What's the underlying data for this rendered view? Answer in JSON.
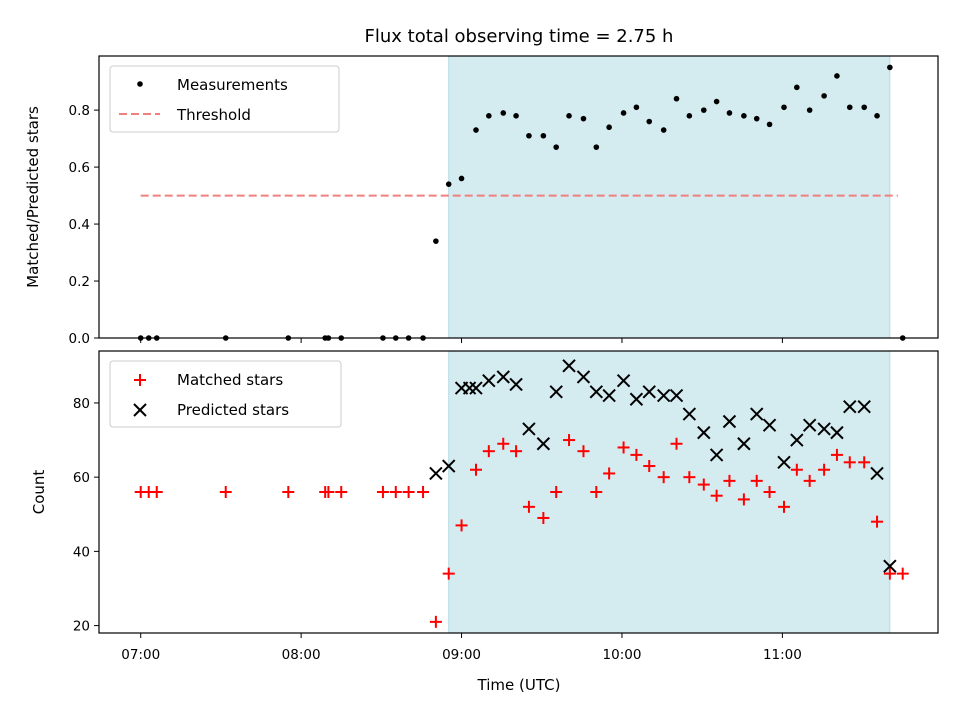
{
  "chart_data": {
    "type": "scatter",
    "title": "Flux total observing time = 2.75 h",
    "xlabel": "Time (UTC)",
    "xticks": [
      "07:00",
      "08:00",
      "09:00",
      "10:00",
      "11:00"
    ],
    "xlim_hours": [
      6.74,
      11.97
    ],
    "observing_window_hours": [
      8.92,
      11.67
    ],
    "observing_window_color": "#d4ebf0",
    "panels": [
      {
        "ylabel": "Matched/Predicted stars",
        "ylim": [
          0,
          0.99
        ],
        "yticks": [
          "0.0",
          "0.2",
          "0.4",
          "0.6",
          "0.8"
        ],
        "legend_position": "upper-left",
        "threshold": {
          "name": "Threshold",
          "value": 0.5,
          "x_range_hours": [
            7.0,
            11.72
          ],
          "color": "#f08080"
        },
        "series": [
          {
            "name": "Measurements",
            "marker": "dot",
            "color": "#000000",
            "x": [
              7.0,
              7.05,
              7.1,
              7.53,
              7.92,
              8.15,
              8.17,
              8.25,
              8.51,
              8.59,
              8.67,
              8.76,
              8.84,
              8.92,
              9.0,
              9.09,
              9.17,
              9.26,
              9.34,
              9.42,
              9.51,
              9.59,
              9.67,
              9.76,
              9.84,
              9.92,
              10.01,
              10.09,
              10.17,
              10.26,
              10.34,
              10.42,
              10.51,
              10.59,
              10.67,
              10.76,
              10.84,
              10.92,
              11.01,
              11.09,
              11.17,
              11.26,
              11.34,
              11.42,
              11.51,
              11.59,
              11.67,
              11.75
            ],
            "y": [
              0.0,
              0.0,
              0.0,
              0.0,
              0.0,
              0.0,
              0.0,
              0.0,
              0.0,
              0.0,
              0.0,
              0.0,
              0.34,
              0.54,
              0.56,
              0.73,
              0.78,
              0.79,
              0.78,
              0.71,
              0.71,
              0.67,
              0.78,
              0.77,
              0.67,
              0.74,
              0.79,
              0.81,
              0.76,
              0.73,
              0.84,
              0.78,
              0.8,
              0.83,
              0.79,
              0.78,
              0.77,
              0.75,
              0.81,
              0.88,
              0.8,
              0.85,
              0.92,
              0.81,
              0.81,
              0.78,
              0.95,
              0.0
            ]
          }
        ]
      },
      {
        "ylabel": "Count",
        "ylim": [
          18,
          94
        ],
        "yticks": [
          "20",
          "40",
          "60",
          "80"
        ],
        "legend_position": "upper-left",
        "series": [
          {
            "name": "Matched stars",
            "marker": "plus",
            "color": "#ff0000",
            "x": [
              7.0,
              7.05,
              7.1,
              7.53,
              7.92,
              8.15,
              8.17,
              8.25,
              8.51,
              8.59,
              8.67,
              8.76,
              8.84,
              8.92,
              9.0,
              9.09,
              9.17,
              9.26,
              9.34,
              9.42,
              9.51,
              9.59,
              9.67,
              9.76,
              9.84,
              9.92,
              10.01,
              10.09,
              10.17,
              10.26,
              10.34,
              10.42,
              10.51,
              10.59,
              10.67,
              10.76,
              10.84,
              10.92,
              11.01,
              11.09,
              11.17,
              11.26,
              11.34,
              11.42,
              11.51,
              11.59,
              11.67,
              11.75
            ],
            "y": [
              56,
              56,
              56,
              56,
              56,
              56,
              56,
              56,
              56,
              56,
              56,
              56,
              21,
              34,
              47,
              62,
              67,
              69,
              67,
              52,
              49,
              56,
              70,
              67,
              56,
              61,
              68,
              66,
              63,
              60,
              69,
              60,
              58,
              55,
              59,
              54,
              59,
              56,
              52,
              62,
              59,
              62,
              66,
              64,
              64,
              48,
              34,
              34
            ]
          },
          {
            "name": "Predicted stars",
            "marker": "x",
            "color": "#000000",
            "x": [
              8.84,
              8.92,
              9.0,
              9.05,
              9.09,
              9.17,
              9.26,
              9.34,
              9.42,
              9.51,
              9.59,
              9.67,
              9.76,
              9.84,
              9.92,
              10.01,
              10.09,
              10.17,
              10.26,
              10.34,
              10.42,
              10.51,
              10.59,
              10.67,
              10.76,
              10.84,
              10.92,
              11.01,
              11.09,
              11.17,
              11.26,
              11.34,
              11.42,
              11.51,
              11.59,
              11.67
            ],
            "y": [
              61,
              63,
              84,
              84,
              84,
              86,
              87,
              85,
              73,
              69,
              83,
              90,
              87,
              83,
              82,
              86,
              81,
              83,
              82,
              82,
              77,
              72,
              66,
              75,
              69,
              77,
              74,
              64,
              70,
              74,
              73,
              72,
              79,
              79,
              61,
              36
            ]
          }
        ]
      }
    ]
  }
}
